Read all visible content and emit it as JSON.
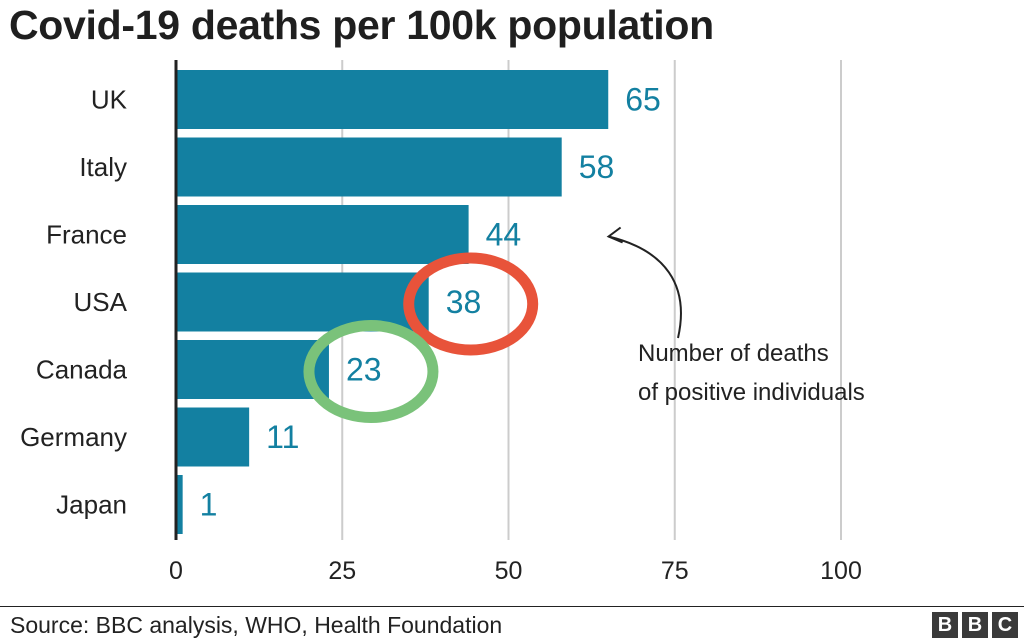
{
  "chart_data": {
    "type": "bar",
    "orientation": "horizontal",
    "title": "Covid-19 deaths per 100k population",
    "categories": [
      "UK",
      "Italy",
      "France",
      "USA",
      "Canada",
      "Germany",
      "Japan"
    ],
    "values": [
      65,
      58,
      44,
      38,
      23,
      11,
      1
    ],
    "value_labels": [
      "65",
      "58",
      "44",
      "38",
      "23",
      "11",
      "1"
    ],
    "xlim": [
      0,
      100
    ],
    "xticks": [
      0,
      25,
      50,
      75,
      100
    ],
    "xtick_labels": [
      "0",
      "25",
      "50",
      "75",
      "100"
    ],
    "xlabel": "",
    "ylabel": "",
    "grid": true,
    "annotation": {
      "lines": [
        "Number of deaths",
        "of positive individuals"
      ],
      "points_to": "France"
    },
    "highlights": [
      {
        "category": "USA",
        "color": "#e8533a"
      },
      {
        "category": "Canada",
        "color": "#7ac27a"
      }
    ]
  },
  "colors": {
    "bar": "#1380a1",
    "label": "#1380a1",
    "grid": "#cccccc",
    "axis": "#222222"
  },
  "footer": {
    "source": "Source: BBC analysis, WHO, Health Foundation",
    "logo_letters": [
      "B",
      "B",
      "C"
    ]
  }
}
